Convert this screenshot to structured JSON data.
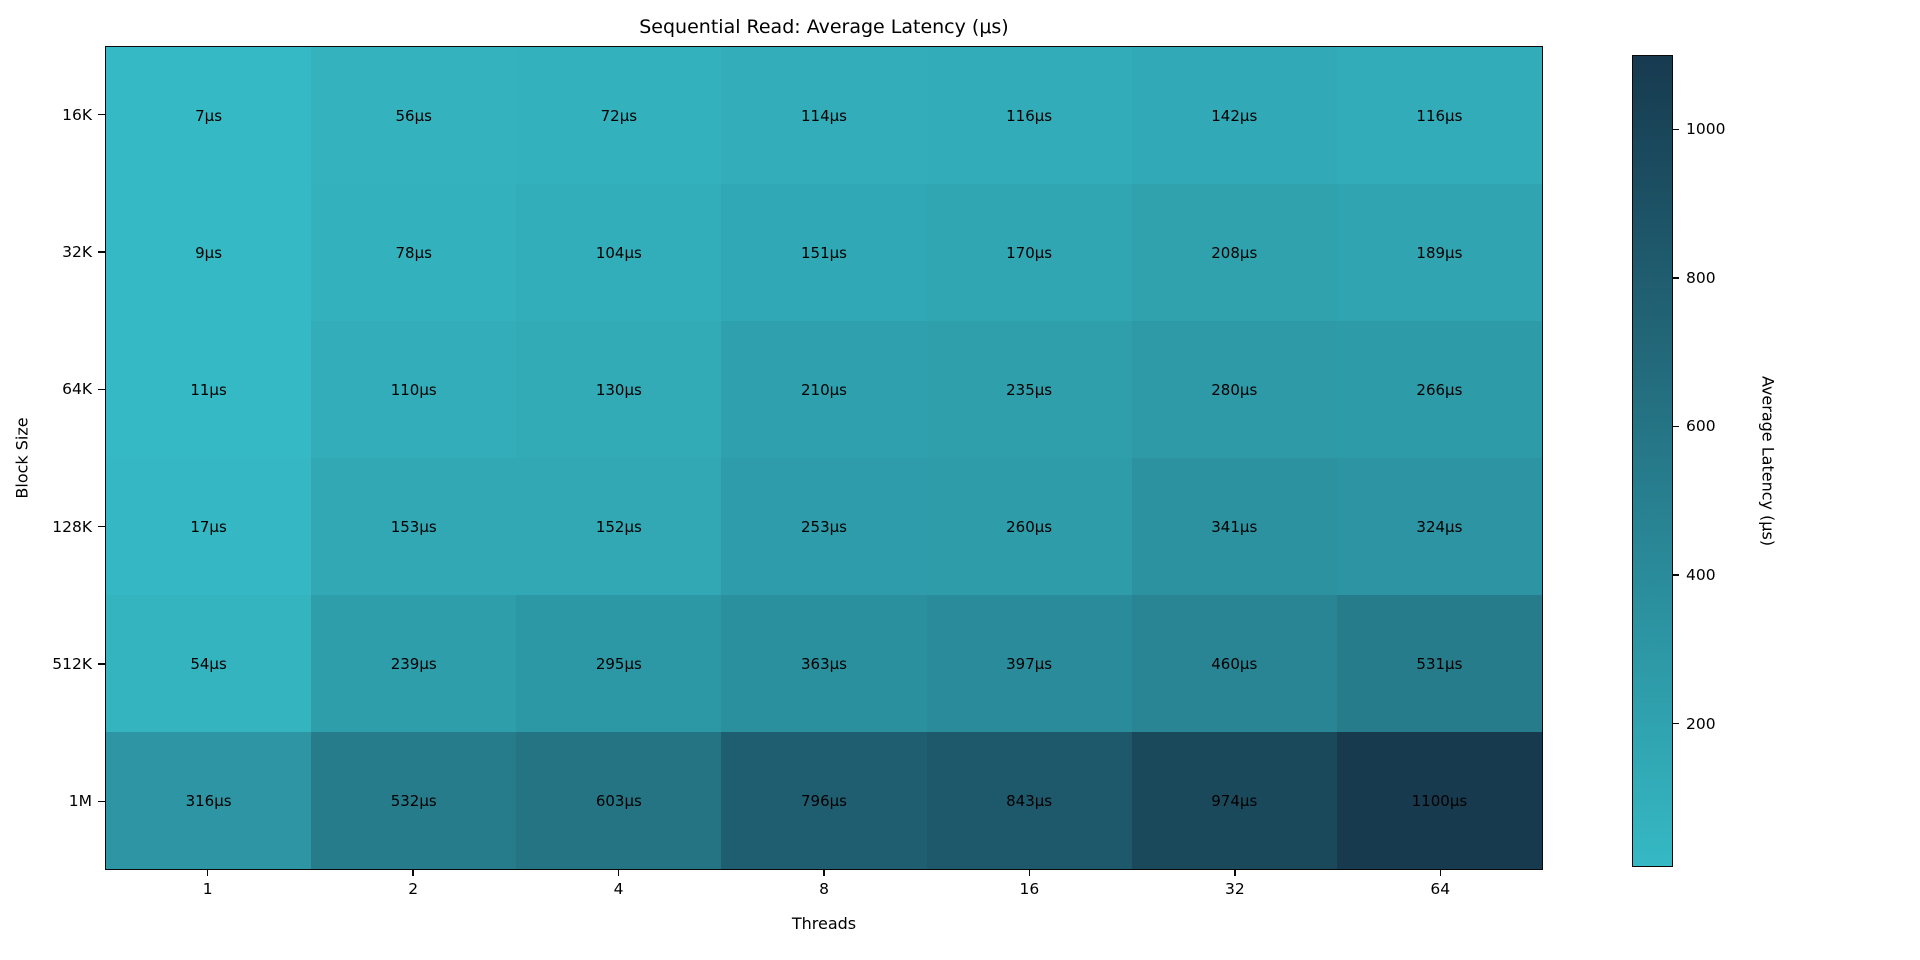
{
  "chart_data": {
    "type": "heatmap",
    "title": "Sequential Read: Average Latency (μs)",
    "xlabel": "Threads",
    "ylabel": "Block Size",
    "x_categories": [
      "1",
      "2",
      "4",
      "8",
      "16",
      "32",
      "64"
    ],
    "y_categories": [
      "16K",
      "32K",
      "64K",
      "128K",
      "512K",
      "1M"
    ],
    "values": [
      [
        7,
        56,
        72,
        114,
        116,
        142,
        116
      ],
      [
        9,
        78,
        104,
        151,
        170,
        208,
        189
      ],
      [
        11,
        110,
        130,
        210,
        235,
        280,
        266
      ],
      [
        17,
        153,
        152,
        253,
        260,
        341,
        324
      ],
      [
        54,
        239,
        295,
        363,
        397,
        460,
        531
      ],
      [
        316,
        532,
        603,
        796,
        843,
        974,
        1100
      ]
    ],
    "cell_label_unit": "μs",
    "vmin": 7,
    "vmax": 1100,
    "colormap": {
      "low": "#35b9c4",
      "high": "#173a4f"
    },
    "cell_text_color": "#000000",
    "colorbar": {
      "label": "Average Latency (μs)",
      "ticks": [
        200,
        400,
        600,
        800,
        1000
      ],
      "orientation": "vertical",
      "position": "right"
    },
    "grid": false,
    "background": "#ffffff"
  }
}
